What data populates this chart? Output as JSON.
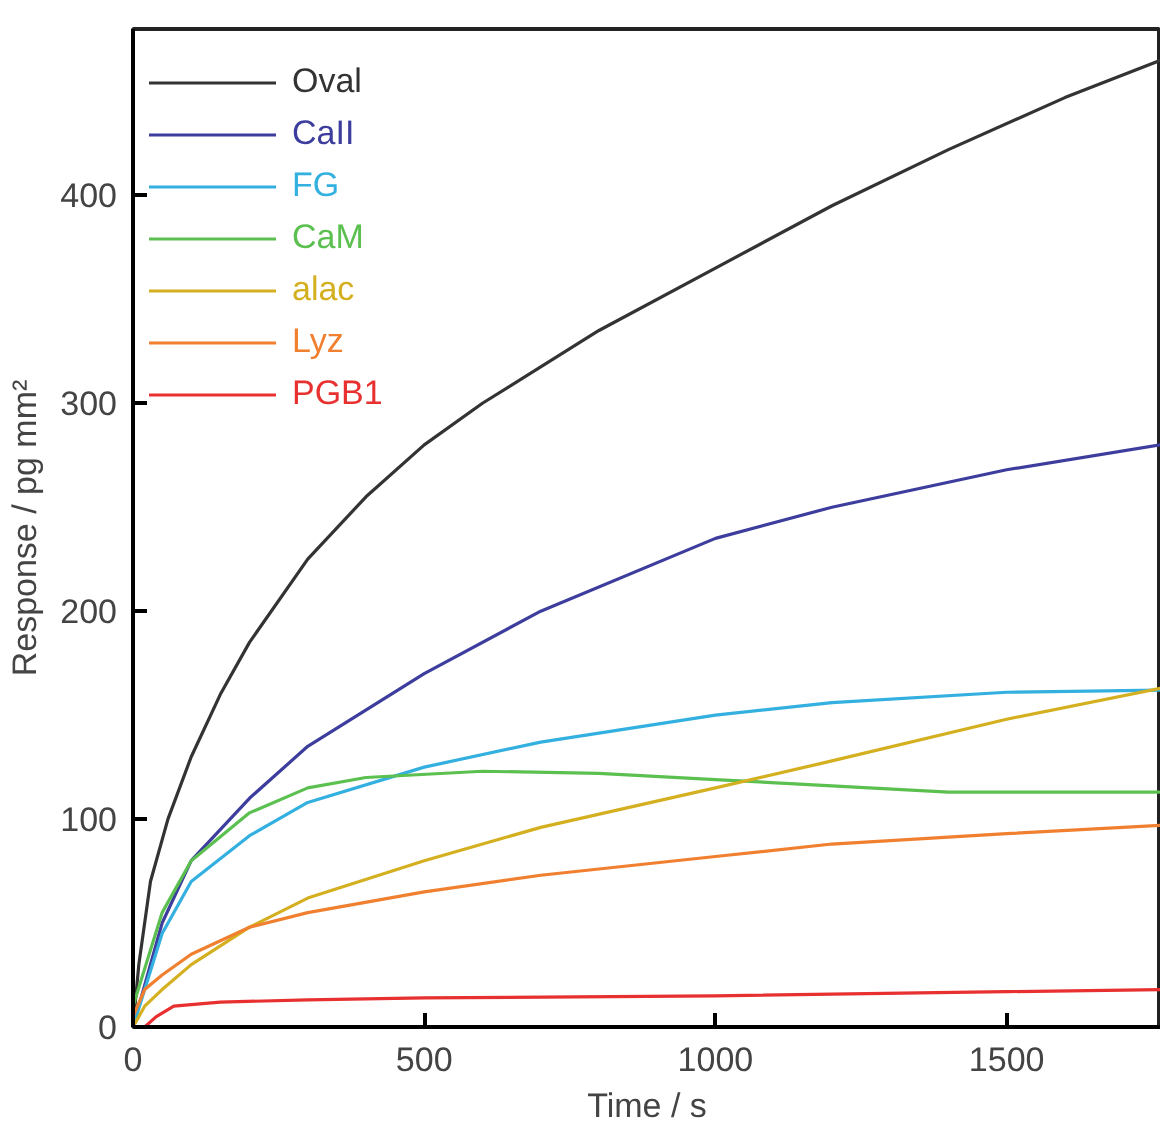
{
  "chart_data": {
    "type": "line",
    "xlabel": "Time / s",
    "ylabel": "Response / pg mm²",
    "xlim": [
      0,
      1765
    ],
    "ylim": [
      0,
      480
    ],
    "xticks": [
      0,
      500,
      1000,
      1500
    ],
    "yticks": [
      0,
      100,
      200,
      300,
      400
    ],
    "grid": false,
    "legend": "top left",
    "marker": "none",
    "line_style": "solid",
    "series": [
      {
        "name": "Oval",
        "color": "#333333",
        "x": [
          0,
          10,
          30,
          60,
          100,
          150,
          200,
          300,
          400,
          500,
          600,
          800,
          1000,
          1200,
          1400,
          1600,
          1765
        ],
        "values": [
          0,
          30,
          70,
          100,
          130,
          160,
          185,
          225,
          255,
          280,
          300,
          335,
          365,
          395,
          422,
          447,
          465
        ]
      },
      {
        "name": "CaII",
        "color": "#3d3d9e",
        "x": [
          0,
          50,
          100,
          200,
          300,
          500,
          700,
          1000,
          1200,
          1500,
          1765
        ],
        "values": [
          0,
          50,
          80,
          110,
          135,
          170,
          200,
          235,
          250,
          268,
          280
        ]
      },
      {
        "name": "FG",
        "color": "#33b0e0",
        "x": [
          0,
          50,
          100,
          200,
          300,
          500,
          700,
          1000,
          1200,
          1500,
          1765
        ],
        "values": [
          0,
          45,
          70,
          92,
          108,
          125,
          137,
          150,
          156,
          161,
          162
        ]
      },
      {
        "name": "CaM",
        "color": "#5cc050",
        "x": [
          0,
          50,
          100,
          200,
          300,
          400,
          600,
          800,
          1000,
          1200,
          1400,
          1600,
          1765
        ],
        "values": [
          10,
          55,
          80,
          103,
          115,
          120,
          123,
          122,
          119,
          116,
          113,
          113,
          113
        ]
      },
      {
        "name": "alac",
        "color": "#d4b020",
        "x": [
          0,
          20,
          50,
          100,
          200,
          300,
          500,
          700,
          1000,
          1200,
          1500,
          1765
        ],
        "values": [
          0,
          10,
          18,
          30,
          48,
          62,
          80,
          96,
          115,
          128,
          148,
          163
        ]
      },
      {
        "name": "Lyz",
        "color": "#f08030",
        "x": [
          0,
          20,
          50,
          100,
          200,
          300,
          500,
          700,
          1000,
          1200,
          1500,
          1765
        ],
        "values": [
          5,
          18,
          25,
          35,
          48,
          55,
          65,
          73,
          82,
          88,
          93,
          97
        ]
      },
      {
        "name": "PGB1",
        "color": "#e83030",
        "x": [
          20,
          40,
          70,
          150,
          300,
          500,
          1000,
          1500,
          1765
        ],
        "values": [
          0,
          5,
          10,
          12,
          13,
          14,
          15,
          17,
          18
        ]
      }
    ]
  }
}
